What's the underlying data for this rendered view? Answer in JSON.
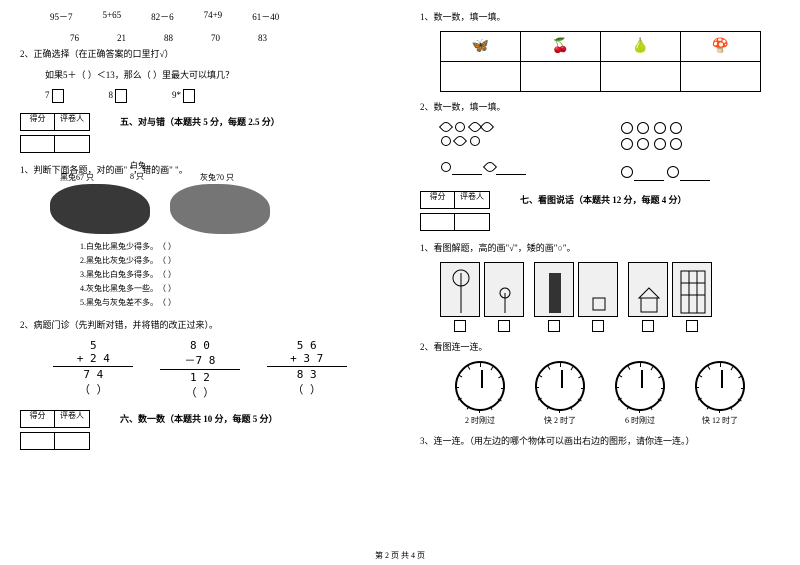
{
  "left": {
    "expressions": [
      "95－7",
      "5+65",
      "82－6",
      "74+9",
      "61－40"
    ],
    "numbers": [
      "76",
      "21",
      "88",
      "70",
      "83"
    ],
    "q2_text": "2、正确选择（在正确答案的口里打√）",
    "q2_sub": "如果5＋（  ）＜13，那么（  ）里最大可以填几？",
    "choices": [
      {
        "n": "7"
      },
      {
        "n": "8"
      },
      {
        "n": "9"
      }
    ],
    "section5": {
      "score_labels": [
        "得分",
        "评卷人"
      ],
      "title": "五、对与错（本题共 5 分，每题 2.5 分）",
      "q1": "1、判断下面各题，对的画\" \"，错的画\" \"。",
      "labels": {
        "white": "白兔 8 只",
        "black": "黑兔67 只",
        "gray": "灰兔70 只"
      },
      "judgments": [
        "1.白兔比黑兔少得多。",
        "2.黑兔比灰兔少得多。",
        "3.黑兔比白兔多得多。",
        "4.灰兔比黑兔多一些。",
        "5.黑兔与灰兔差不多。"
      ],
      "q2": "2、病题门诊（先判断对错，并将错的改正过来）。",
      "arith": [
        {
          "a": "5",
          "b": "+ 2 4",
          "c": "7 4"
        },
        {
          "a": "8 0",
          "b": "－7 8",
          "c": "1 2"
        },
        {
          "a": "5 6",
          "b": "+ 3 7",
          "c": "8 3"
        }
      ],
      "paren": "（     ）"
    },
    "section6": {
      "score_labels": [
        "得分",
        "评卷人"
      ],
      "title": "六、数一数（本题共 10 分，每题 5 分）"
    }
  },
  "right": {
    "q1": "1、数一数，填一填。",
    "table_icons": [
      "🦋",
      "🍒",
      "🍐",
      "🍄"
    ],
    "q2": "2、数一数，填一填。",
    "section7": {
      "score_labels": [
        "得分",
        "评卷人"
      ],
      "title": "七、看图说话（本题共 12 分，每题 4 分）",
      "q1": "1、看图解题，高的画\"√\"，矮的画\"○\"。",
      "q2": "2、看图连一连。",
      "clocks": [
        "2 时刚过",
        "快 2 时了",
        "6 时刚过",
        "快 12 时了"
      ],
      "clock_angles": [
        {
          "hour": 60,
          "min": 30
        },
        {
          "hour": 55,
          "min": -30
        },
        {
          "hour": 183,
          "min": 20
        },
        {
          "hour": -5,
          "min": -30
        }
      ],
      "q3": "3、连一连。（用左边的哪个物体可以画出右边的图形，请你连一连。）"
    }
  },
  "footer": "第 2 页 共 4 页"
}
